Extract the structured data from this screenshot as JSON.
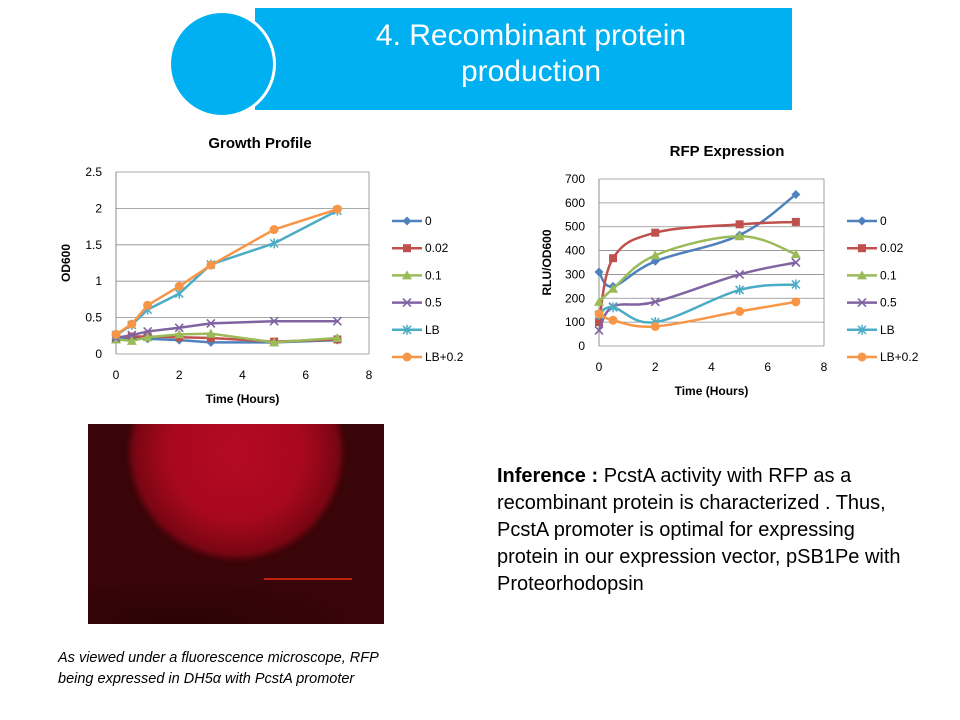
{
  "slide": {
    "title_line1": "4. Recombinant protein",
    "title_line2": "production",
    "accent_color": "#00b0f0"
  },
  "figure": {
    "caption_line1": "As viewed under a fluorescence microscope, RFP",
    "caption_line2": "being expressed in DH5α with PcstA promoter"
  },
  "inference": {
    "label": "Inference :",
    "text": " PcstA activity with RFP as a recombinant protein is characterized . Thus, PcstA promoter is optimal for expressing protein in our expression vector, pSB1Pe with Proteorhodopsin"
  },
  "chart_data": [
    {
      "type": "line",
      "title": "Growth Profile",
      "xlabel": "Time (Hours)",
      "ylabel": "OD600",
      "xlim": [
        0,
        8
      ],
      "ylim": [
        0,
        2.5
      ],
      "xticks": [
        "0",
        "2",
        "4",
        "6",
        "8"
      ],
      "yticks": [
        "0",
        "0.5",
        "1",
        "1.5",
        "2",
        "2.5"
      ],
      "grid": true,
      "legend": "right",
      "series": [
        {
          "name": "0",
          "color": "#4f81bd",
          "marker": "diamond",
          "x": [
            0,
            0.5,
            1,
            2,
            3,
            5,
            7
          ],
          "y": [
            0.2,
            0.21,
            0.21,
            0.19,
            0.16,
            0.16,
            0.19
          ]
        },
        {
          "name": "0.02",
          "color": "#c0504d",
          "marker": "square",
          "x": [
            0,
            0.5,
            1,
            2,
            3,
            5,
            7
          ],
          "y": [
            0.23,
            0.24,
            0.24,
            0.23,
            0.22,
            0.17,
            0.2
          ]
        },
        {
          "name": "0.1",
          "color": "#9bbb59",
          "marker": "triangle",
          "x": [
            0,
            0.5,
            1,
            2,
            3,
            5,
            7
          ],
          "y": [
            0.2,
            0.18,
            0.23,
            0.27,
            0.28,
            0.16,
            0.22
          ]
        },
        {
          "name": "0.5",
          "color": "#8064a2",
          "marker": "x",
          "x": [
            0,
            0.5,
            1,
            2,
            3,
            5,
            7
          ],
          "y": [
            0.22,
            0.26,
            0.31,
            0.36,
            0.42,
            0.45,
            0.45
          ]
        },
        {
          "name": "LB",
          "color": "#4bacc6",
          "marker": "star",
          "x": [
            0,
            0.5,
            1,
            2,
            3,
            5,
            7
          ],
          "y": [
            0.26,
            0.4,
            0.61,
            0.83,
            1.23,
            1.52,
            1.97
          ]
        },
        {
          "name": "LB+0.2",
          "color": "#f79646",
          "marker": "circle",
          "x": [
            0,
            0.5,
            1,
            2,
            3,
            5,
            7
          ],
          "y": [
            0.27,
            0.41,
            0.67,
            0.93,
            1.22,
            1.71,
            1.99
          ]
        }
      ]
    },
    {
      "type": "line",
      "title": "RFP Expression",
      "xlabel": "Time (Hours)",
      "ylabel": "RLU/OD600",
      "xlim": [
        0,
        8
      ],
      "ylim": [
        0,
        700
      ],
      "xticks": [
        "0",
        "2",
        "4",
        "6",
        "8"
      ],
      "yticks": [
        "0",
        "100",
        "200",
        "300",
        "400",
        "500",
        "600",
        "700"
      ],
      "grid": true,
      "legend": "right",
      "series": [
        {
          "name": "0",
          "color": "#4f81bd",
          "marker": "diamond",
          "x": [
            0,
            0.5,
            2,
            5,
            7
          ],
          "y": [
            310,
            250,
            355,
            465,
            635
          ]
        },
        {
          "name": "0.02",
          "color": "#c0504d",
          "marker": "square",
          "x": [
            0,
            0.5,
            2,
            5,
            7
          ],
          "y": [
            100,
            368,
            475,
            510,
            520
          ]
        },
        {
          "name": "0.1",
          "color": "#9bbb59",
          "marker": "triangle",
          "x": [
            0,
            0.5,
            2,
            5,
            7
          ],
          "y": [
            185,
            240,
            380,
            460,
            385
          ]
        },
        {
          "name": "0.5",
          "color": "#8064a2",
          "marker": "x",
          "x": [
            0,
            0.5,
            2,
            5,
            7
          ],
          "y": [
            65,
            165,
            185,
            300,
            350
          ]
        },
        {
          "name": "LB",
          "color": "#4bacc6",
          "marker": "star",
          "x": [
            0,
            0.5,
            2,
            5,
            7
          ],
          "y": [
            130,
            162,
            100,
            235,
            258
          ]
        },
        {
          "name": "LB+0.2",
          "color": "#f79646",
          "marker": "circle",
          "x": [
            0,
            0.5,
            2,
            5,
            7
          ],
          "y": [
            135,
            108,
            82,
            145,
            185
          ]
        }
      ]
    }
  ]
}
